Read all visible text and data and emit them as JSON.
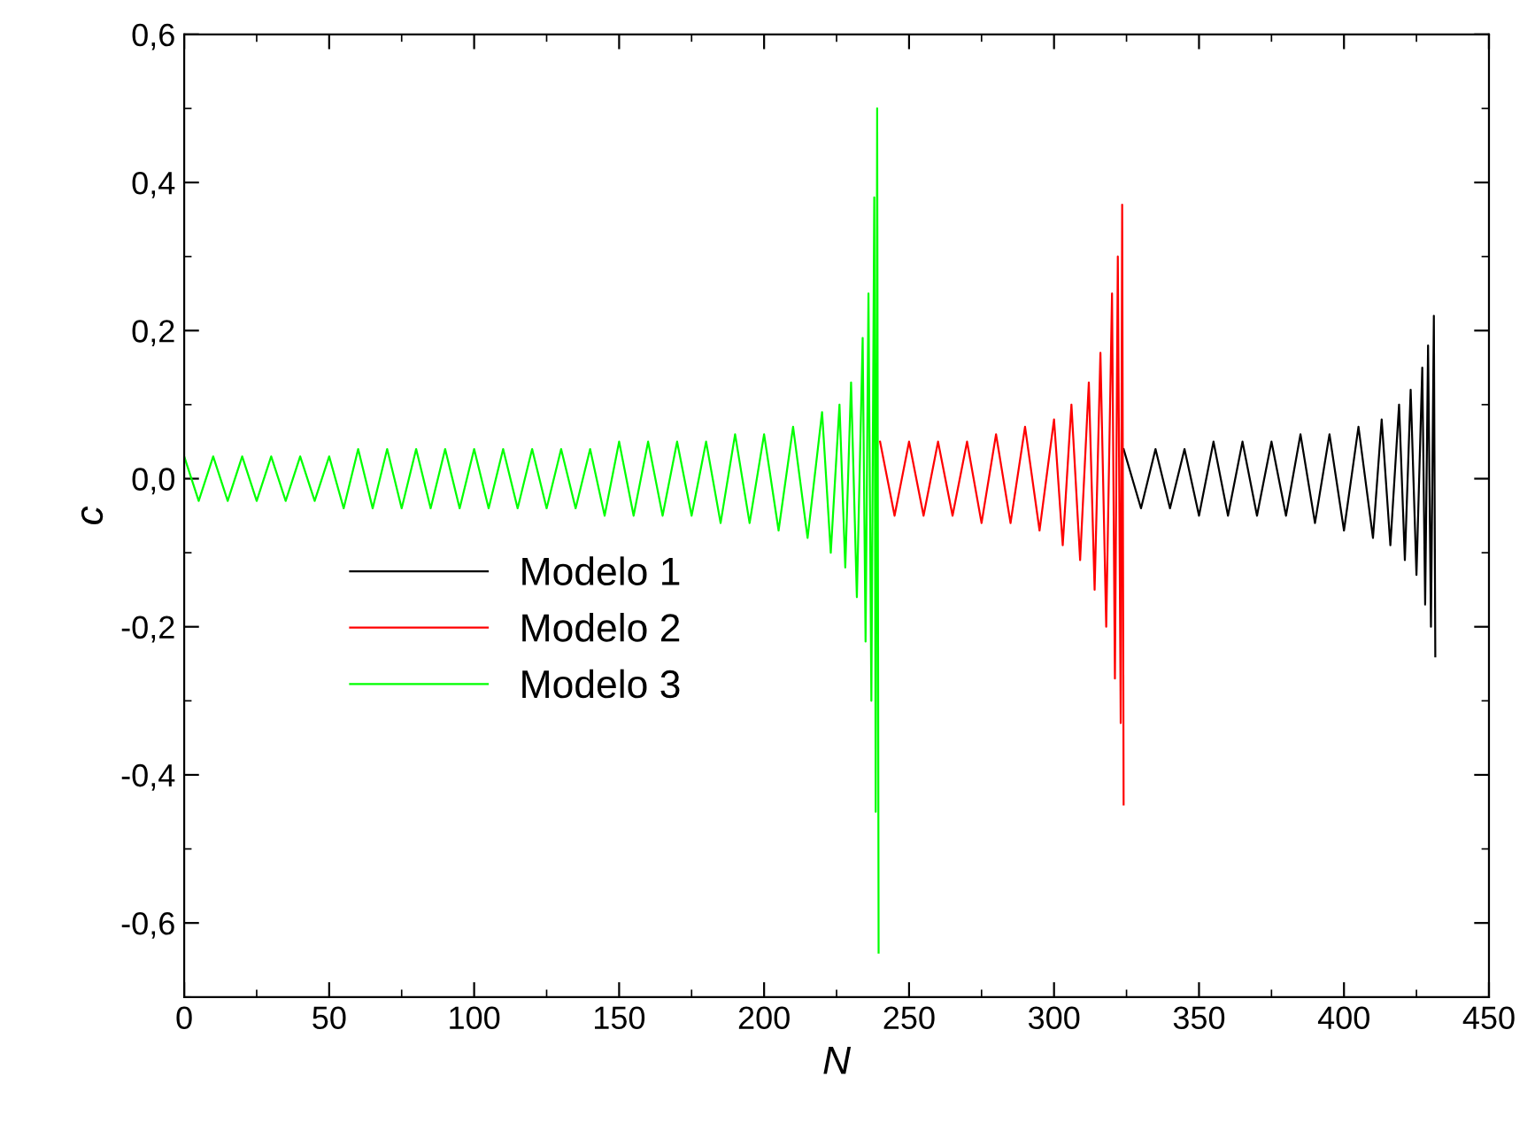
{
  "chart_data": {
    "type": "line",
    "xlabel": "N",
    "ylabel": "c",
    "xlim": [
      0,
      450
    ],
    "xticks": [
      0,
      50,
      100,
      150,
      200,
      250,
      300,
      350,
      400,
      450
    ],
    "ylim": [
      -0.7,
      0.6
    ],
    "yticks": [
      {
        "value": -0.6,
        "label": "-0,6"
      },
      {
        "value": -0.4,
        "label": "-0,4"
      },
      {
        "value": -0.2,
        "label": "-0,2"
      },
      {
        "value": 0,
        "label": "0,0"
      },
      {
        "value": 0.2,
        "label": "0,2"
      },
      {
        "value": 0.4,
        "label": "0,4"
      },
      {
        "value": 0.6,
        "label": "0,6"
      }
    ],
    "grid": false,
    "legend": "center left",
    "marker": "none",
    "line_style": "solid",
    "series": [
      {
        "name": "Modelo 1",
        "color": "#000000",
        "x": [
          324,
          330,
          335,
          340,
          345,
          350,
          355,
          360,
          365,
          370,
          375,
          380,
          385,
          390,
          395,
          400,
          405,
          410,
          413,
          416,
          419,
          421,
          423,
          425,
          427,
          428,
          429,
          430,
          431,
          431.5
        ],
        "values": [
          0.04,
          -0.04,
          0.04,
          -0.04,
          0.04,
          -0.05,
          0.05,
          -0.05,
          0.05,
          -0.05,
          0.05,
          -0.05,
          0.06,
          -0.06,
          0.06,
          -0.07,
          0.07,
          -0.08,
          0.08,
          -0.09,
          0.1,
          -0.11,
          0.12,
          -0.13,
          0.15,
          -0.17,
          0.18,
          -0.2,
          0.22,
          -0.24
        ]
      },
      {
        "name": "Modelo 2",
        "color": "#ff0000",
        "x": [
          240,
          245,
          250,
          255,
          260,
          265,
          270,
          275,
          280,
          285,
          290,
          295,
          300,
          303,
          306,
          309,
          312,
          314,
          316,
          318,
          320,
          321,
          322,
          323,
          323.5,
          324
        ],
        "values": [
          0.05,
          -0.05,
          0.05,
          -0.05,
          0.05,
          -0.05,
          0.05,
          -0.06,
          0.06,
          -0.06,
          0.07,
          -0.07,
          0.08,
          -0.09,
          0.1,
          -0.11,
          0.13,
          -0.15,
          0.17,
          -0.2,
          0.25,
          -0.27,
          0.3,
          -0.33,
          0.37,
          -0.44
        ]
      },
      {
        "name": "Modelo 3",
        "color": "#00ff00",
        "x": [
          0,
          5,
          10,
          15,
          20,
          25,
          30,
          35,
          40,
          45,
          50,
          55,
          60,
          65,
          70,
          75,
          80,
          85,
          90,
          95,
          100,
          105,
          110,
          115,
          120,
          125,
          130,
          135,
          140,
          145,
          150,
          155,
          160,
          165,
          170,
          175,
          180,
          185,
          190,
          195,
          200,
          205,
          210,
          215,
          220,
          223,
          226,
          228,
          230,
          232,
          234,
          235,
          236,
          237,
          238,
          238.5,
          239,
          239.5
        ],
        "values": [
          0.03,
          -0.03,
          0.03,
          -0.03,
          0.03,
          -0.03,
          0.03,
          -0.03,
          0.03,
          -0.03,
          0.03,
          -0.04,
          0.04,
          -0.04,
          0.04,
          -0.04,
          0.04,
          -0.04,
          0.04,
          -0.04,
          0.04,
          -0.04,
          0.04,
          -0.04,
          0.04,
          -0.04,
          0.04,
          -0.04,
          0.04,
          -0.05,
          0.05,
          -0.05,
          0.05,
          -0.05,
          0.05,
          -0.05,
          0.05,
          -0.06,
          0.06,
          -0.06,
          0.06,
          -0.07,
          0.07,
          -0.08,
          0.09,
          -0.1,
          0.1,
          -0.12,
          0.13,
          -0.16,
          0.19,
          -0.22,
          0.25,
          -0.3,
          0.38,
          -0.45,
          0.5,
          -0.64
        ]
      }
    ]
  }
}
